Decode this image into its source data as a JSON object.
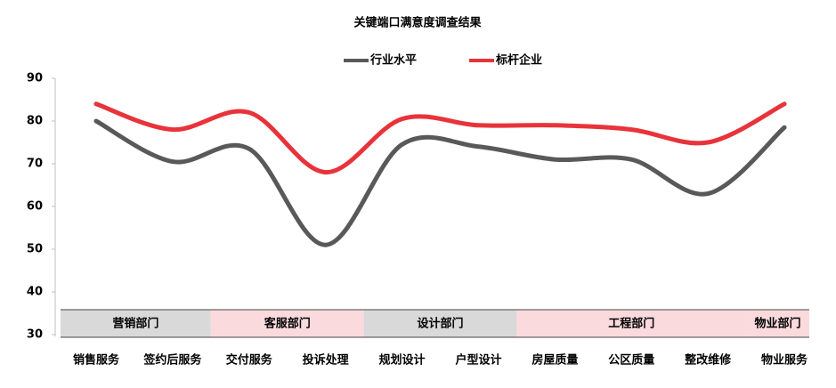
{
  "chart_data": {
    "type": "line",
    "title": "关键端口满意度调查结果",
    "categories": [
      "销售服务",
      "签约后服务",
      "交付服务",
      "投诉处理",
      "规划设计",
      "户型设计",
      "房屋质量",
      "公区质量",
      "整改维修",
      "物业服务"
    ],
    "series": [
      {
        "name": "行业水平",
        "color": "#595959",
        "values": [
          80,
          70.5,
          73.5,
          51,
          74.5,
          74,
          71,
          71,
          63,
          78.5
        ]
      },
      {
        "name": "标杆企业",
        "color": "#e8333a",
        "values": [
          84,
          78,
          82,
          68,
          80.5,
          79,
          79,
          78,
          75,
          84
        ]
      }
    ],
    "groups": [
      {
        "label": "营销部门",
        "members": [
          "销售服务",
          "签约后服务"
        ],
        "color": "#d9d9d9"
      },
      {
        "label": "客服部门",
        "members": [
          "交付服务",
          "投诉处理"
        ],
        "color": "#fadadd"
      },
      {
        "label": "设计部门",
        "members": [
          "规划设计",
          "户型设计"
        ],
        "color": "#d9d9d9"
      },
      {
        "label": "工程部门",
        "members": [
          "房屋质量",
          "公区质量",
          "整改维修"
        ],
        "color": "#fadadd"
      },
      {
        "label": "物业部门",
        "members": [
          "物业服务"
        ],
        "color": "#fadadd"
      }
    ],
    "ylim": [
      30,
      90
    ],
    "yticks": [
      30,
      40,
      50,
      60,
      70,
      80,
      90
    ],
    "grid": false,
    "smooth": true,
    "legend": "top"
  }
}
